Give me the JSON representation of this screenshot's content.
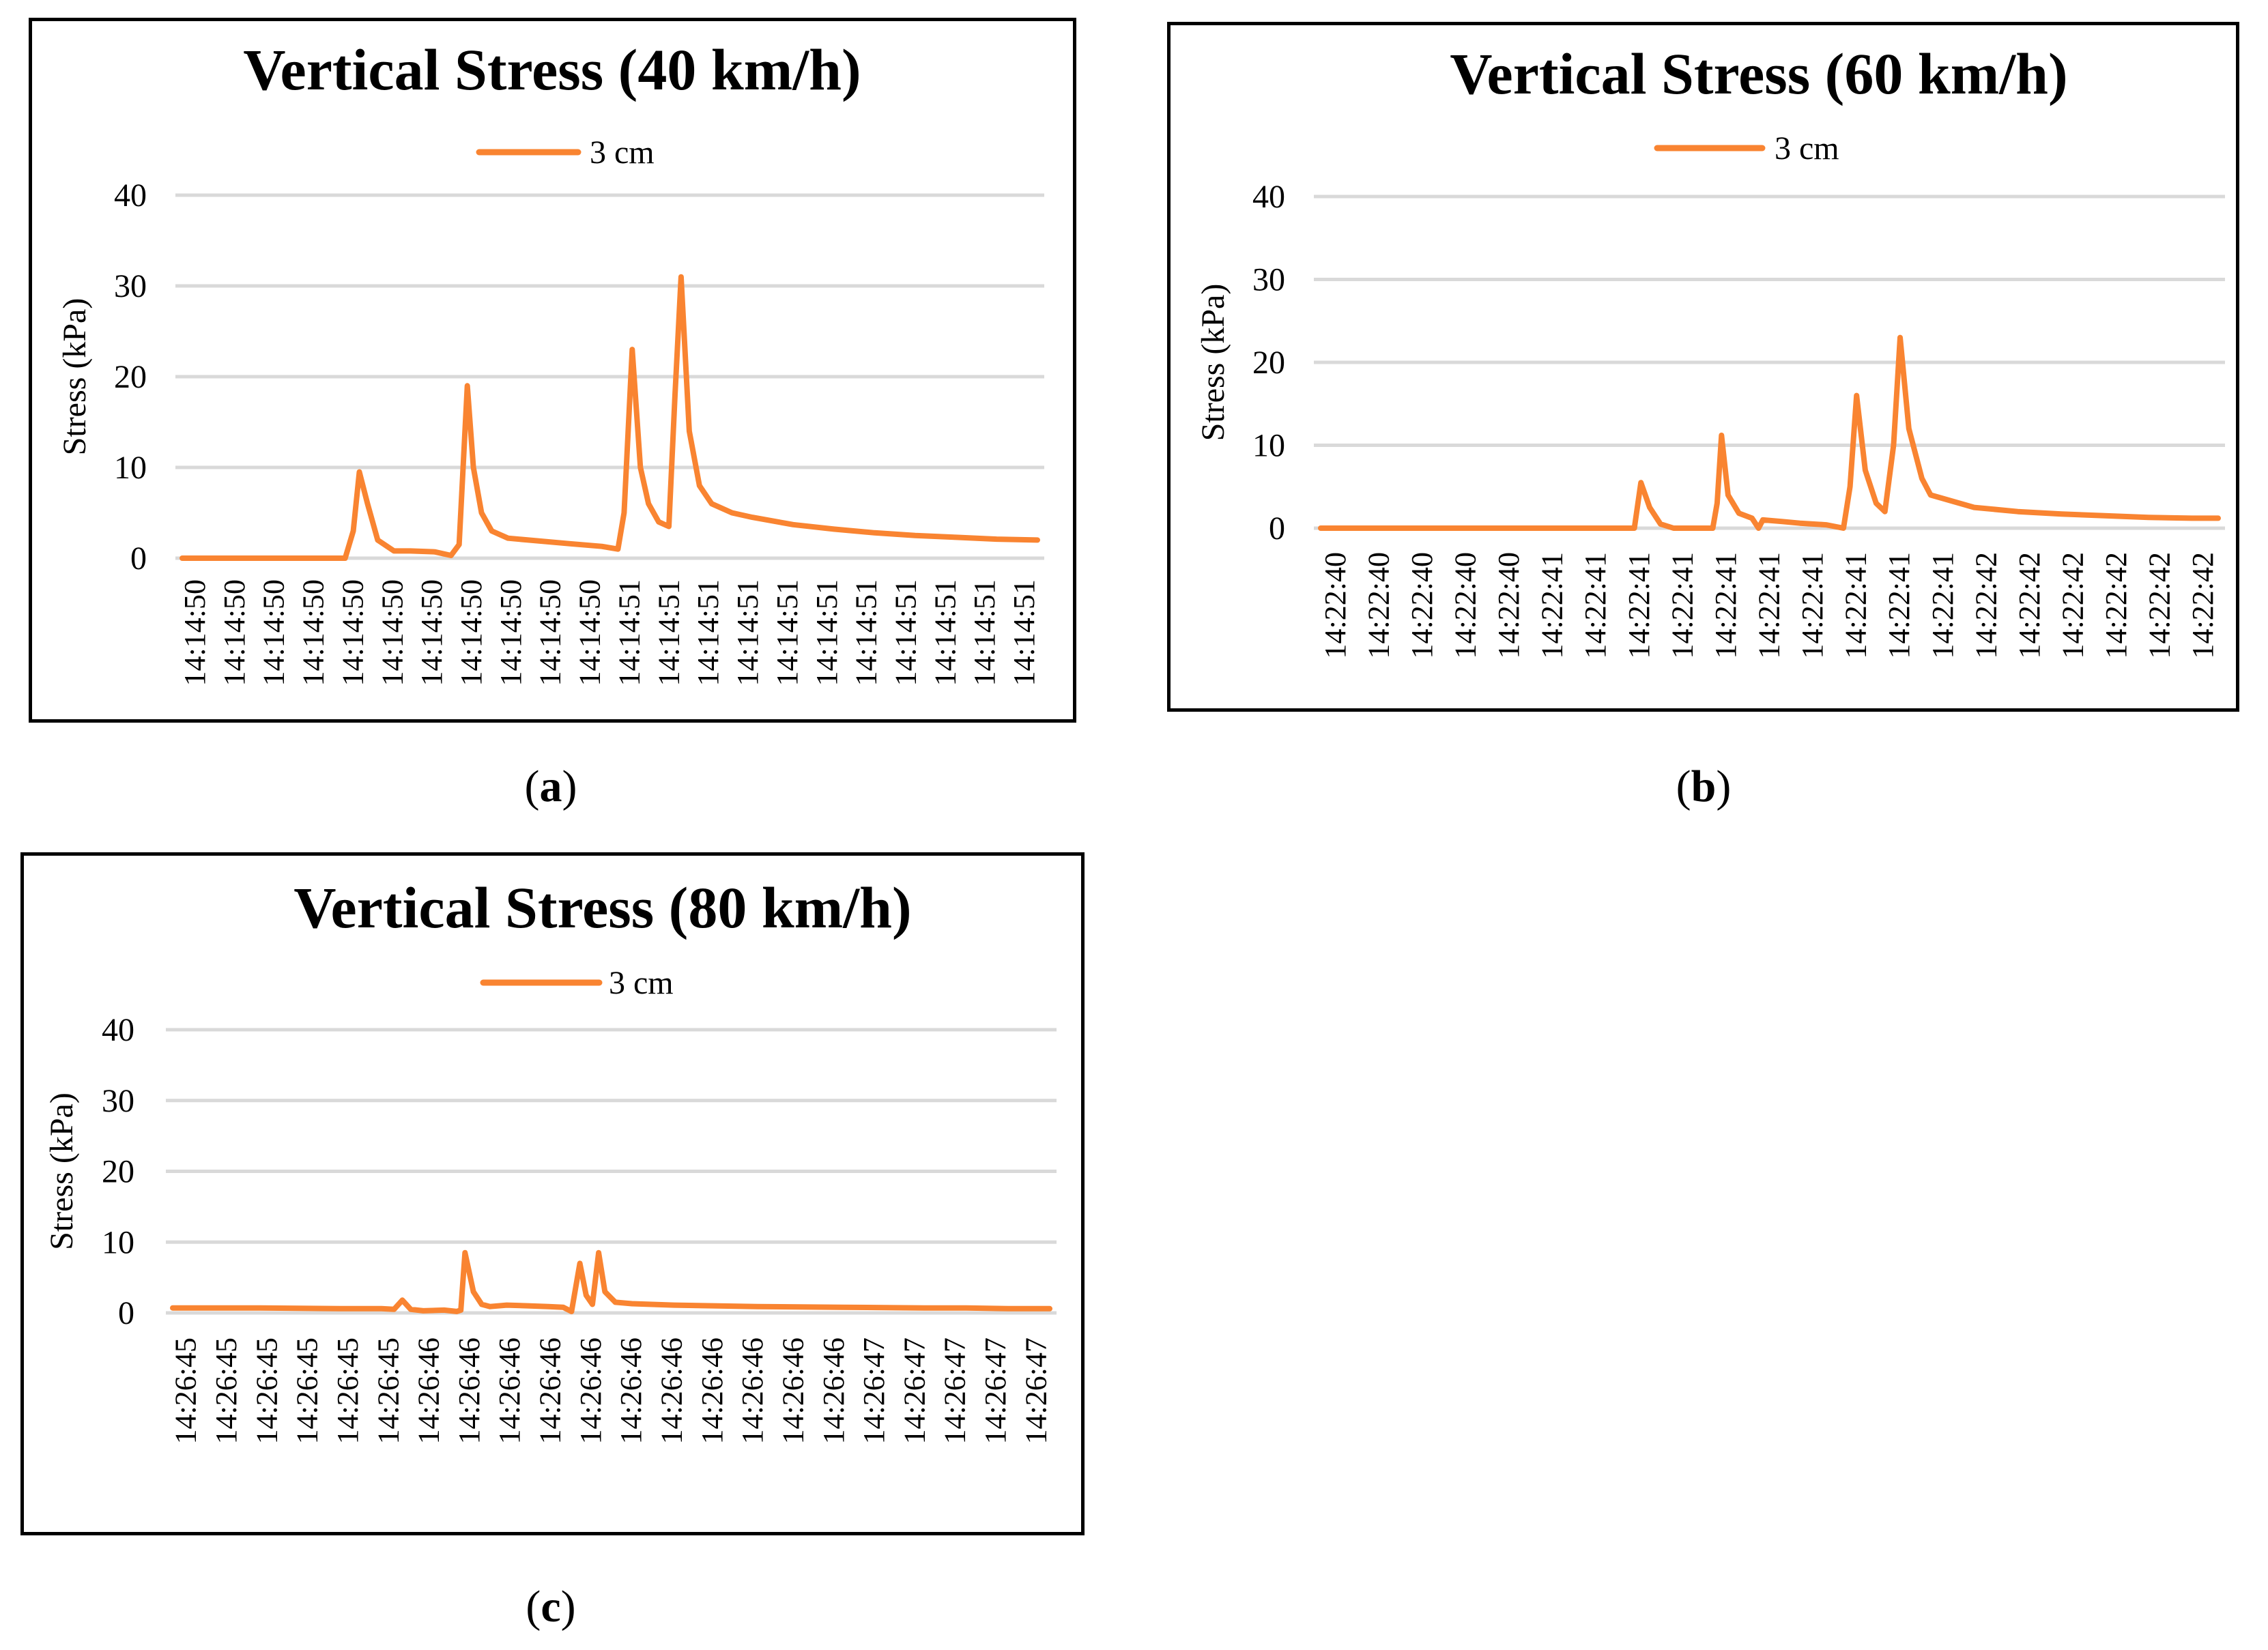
{
  "colors": {
    "series": "#F98431",
    "grid": "#D9D9D9",
    "frame": "#000000"
  },
  "captions": {
    "a": "a",
    "b": "b",
    "c": "c"
  },
  "chart_data": [
    {
      "id": "a",
      "type": "line",
      "title": "Vertical Stress (40 km/h)",
      "xlabel": "",
      "ylabel": "Stress (kPa)",
      "ylim": [
        0,
        40
      ],
      "yticks": [
        0,
        10,
        20,
        30,
        40
      ],
      "grid": true,
      "legend": "top-center",
      "categories": [
        "14:14:50",
        "14:14:50",
        "14:14:50",
        "14:14:50",
        "14:14:50",
        "14:14:50",
        "14:14:50",
        "14:14:50",
        "14:14:50",
        "14:14:50",
        "14:14:50",
        "14:14:51",
        "14:14:51",
        "14:14:51",
        "14:14:51",
        "14:14:51",
        "14:14:51",
        "14:14:51",
        "14:14:51",
        "14:14:51",
        "14:14:51",
        "14:14:51"
      ],
      "series": [
        {
          "name": "3 cm",
          "x": [
            0,
            1.5,
            2.5,
            3.5,
            4,
            4.2,
            4.35,
            4.55,
            4.8,
            5.2,
            5.6,
            6.2,
            6.6,
            6.8,
            7,
            7.15,
            7.35,
            7.6,
            8,
            8.5,
            9.5,
            10.3,
            10.7,
            10.85,
            11.05,
            11.25,
            11.45,
            11.7,
            11.95,
            12.1,
            12.25,
            12.45,
            12.7,
            13,
            13.5,
            14,
            15,
            16,
            17,
            18,
            19,
            20,
            21
          ],
          "values": [
            0,
            0,
            0,
            0,
            0,
            3,
            9.5,
            6,
            2,
            0.8,
            0.8,
            0.7,
            0.3,
            1.5,
            19,
            10,
            5,
            3,
            2.2,
            2,
            1.6,
            1.3,
            1,
            5,
            23,
            10,
            6,
            4,
            3.5,
            18,
            31,
            14,
            8,
            6,
            5,
            4.5,
            3.7,
            3.2,
            2.8,
            2.5,
            2.3,
            2.1,
            2
          ]
        }
      ]
    },
    {
      "id": "b",
      "type": "line",
      "title": "Vertical Stress (60 km/h)",
      "xlabel": "",
      "ylabel": "Stress (kPa)",
      "ylim": [
        0,
        40
      ],
      "yticks": [
        0,
        10,
        20,
        30,
        40
      ],
      "grid": true,
      "legend": "top-center",
      "categories": [
        "14:22:40",
        "14:22:40",
        "14:22:40",
        "14:22:40",
        "14:22:40",
        "14:22:41",
        "14:22:41",
        "14:22:41",
        "14:22:41",
        "14:22:41",
        "14:22:41",
        "14:22:41",
        "14:22:41",
        "14:22:41",
        "14:22:41",
        "14:22:42",
        "14:22:42",
        "14:22:42",
        "14:22:42",
        "14:22:42",
        "14:22:42"
      ],
      "series": [
        {
          "name": "3 cm",
          "x": [
            0,
            2,
            4,
            6,
            7,
            7.2,
            7.35,
            7.55,
            7.8,
            8.1,
            9,
            9.1,
            9.2,
            9.35,
            9.6,
            9.9,
            10.05,
            10.15,
            10.6,
            11,
            11.6,
            12,
            12.15,
            12.3,
            12.5,
            12.75,
            12.95,
            13.15,
            13.3,
            13.5,
            13.8,
            14,
            15,
            16,
            17,
            18,
            19,
            20,
            20.6
          ],
          "values": [
            0,
            0,
            0,
            0,
            0,
            0,
            5.5,
            2.5,
            0.5,
            0,
            0,
            3,
            11.2,
            4,
            1.8,
            1.2,
            0,
            1,
            0.8,
            0.6,
            0.4,
            0,
            5,
            16,
            7,
            3,
            2,
            10,
            23,
            12,
            6,
            4,
            2.5,
            2,
            1.7,
            1.5,
            1.3,
            1.2,
            1.2
          ]
        }
      ]
    },
    {
      "id": "c",
      "type": "line",
      "title": "Vertical Stress (80 km/h)",
      "xlabel": "",
      "ylabel": "Stress (kPa)",
      "ylim": [
        0,
        40
      ],
      "yticks": [
        0,
        10,
        20,
        30,
        40
      ],
      "grid": true,
      "legend": "top-center",
      "categories": [
        "14:26:45",
        "14:26:45",
        "14:26:45",
        "14:26:45",
        "14:26:45",
        "14:26:45",
        "14:26:46",
        "14:26:46",
        "14:26:46",
        "14:26:46",
        "14:26:46",
        "14:26:46",
        "14:26:46",
        "14:26:46",
        "14:26:46",
        "14:26:46",
        "14:26:46",
        "14:26:47",
        "14:26:47",
        "14:26:47",
        "14:26:47",
        "14:26:47"
      ],
      "series": [
        {
          "name": "3 cm",
          "x": [
            0,
            2,
            4,
            5,
            5.3,
            5.5,
            5.7,
            6,
            6.5,
            6.8,
            6.9,
            7,
            7.2,
            7.4,
            7.6,
            8,
            8.5,
            9,
            9.35,
            9.55,
            9.75,
            9.9,
            10.05,
            10.2,
            10.35,
            10.6,
            11,
            12,
            14,
            16,
            18,
            19,
            20,
            21
          ],
          "values": [
            0.7,
            0.7,
            0.6,
            0.6,
            0.5,
            1.8,
            0.5,
            0.3,
            0.4,
            0.2,
            0.4,
            8.5,
            3,
            1.2,
            0.9,
            1.1,
            1,
            0.9,
            0.8,
            0.2,
            7,
            2.5,
            1.2,
            8.5,
            3,
            1.5,
            1.3,
            1.1,
            0.9,
            0.8,
            0.7,
            0.7,
            0.6,
            0.6
          ]
        }
      ]
    }
  ]
}
